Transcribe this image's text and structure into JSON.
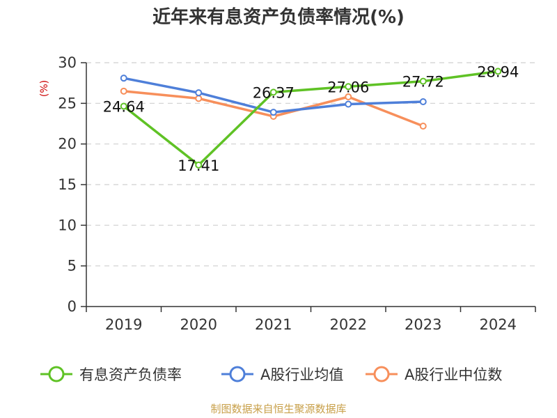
{
  "chart_data": {
    "type": "line",
    "title": "近年来有息资产负债率情况(%)",
    "ylabel": "(%)",
    "xlabel": "",
    "categories": [
      "2019",
      "2020",
      "2021",
      "2022",
      "2023",
      "2024"
    ],
    "ylim": [
      0,
      30
    ],
    "yticks": [
      0,
      5,
      10,
      15,
      20,
      25,
      30
    ],
    "grid": true,
    "legend_position": "bottom",
    "series": [
      {
        "name": "有息资产负债率",
        "color": "#5fc225",
        "values": [
          24.64,
          17.41,
          26.37,
          27.06,
          27.72,
          28.94
        ],
        "labels": [
          "24.64",
          "17.41",
          "26.37",
          "27.06",
          "27.72",
          "28.94"
        ]
      },
      {
        "name": "A股行业均值",
        "color": "#4e7fd9",
        "values": [
          28.1,
          26.3,
          23.9,
          24.9,
          25.2,
          null
        ]
      },
      {
        "name": "A股行业中位数",
        "color": "#f78f5b",
        "values": [
          26.5,
          25.6,
          23.4,
          25.8,
          22.2,
          null
        ]
      }
    ],
    "source": "制图数据来自恒生聚源数据库"
  }
}
